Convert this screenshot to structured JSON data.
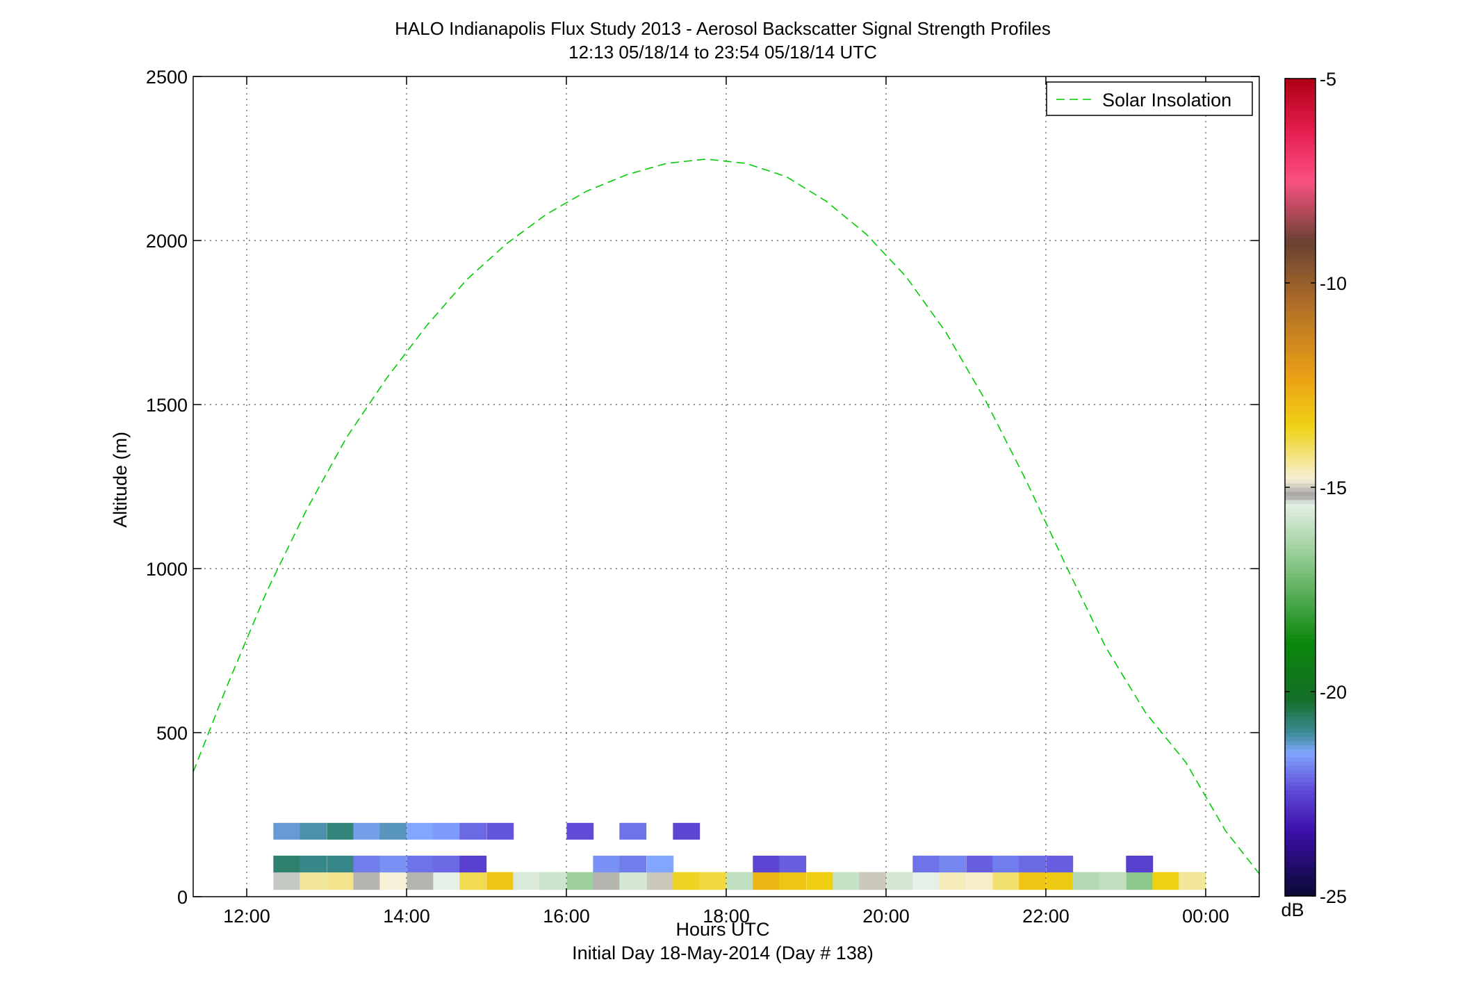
{
  "chart_data": {
    "type": "heatmap",
    "title": "HALO Indianapolis Flux Study 2013 - Aerosol Backscatter Signal Strength Profiles",
    "subtitle": "12:13 05/18/14 to 23:54 05/18/14  UTC",
    "xlabel": "Hours UTC",
    "xlabel2": "Initial Day 18-May-2014 (Day # 138)",
    "ylabel": "Altitude (m)",
    "xlim": [
      11.33,
      24.67
    ],
    "ylim": [
      0,
      2500
    ],
    "x_ticks": [
      12,
      14,
      16,
      18,
      20,
      22,
      24
    ],
    "x_tick_labels": [
      "12:00",
      "14:00",
      "16:00",
      "18:00",
      "20:00",
      "22:00",
      "00:00"
    ],
    "y_ticks": [
      0,
      500,
      1000,
      1500,
      2000,
      2500
    ],
    "y_tick_labels": [
      "0",
      "500",
      "1000",
      "1500",
      "2000",
      "2500"
    ],
    "grid": true,
    "colorbar": {
      "label": "dB",
      "range": [
        -25,
        -5
      ],
      "ticks": [
        -25,
        -20,
        -15,
        -10,
        -5
      ],
      "tick_labels": [
        "-25",
        "-20",
        "-15",
        "-10",
        "-5"
      ]
    },
    "series": [
      {
        "name": "Solar Insolation",
        "style": "dashed",
        "color": "#00cc00",
        "x": [
          11.33,
          11.75,
          12.25,
          12.75,
          13.25,
          13.75,
          14.25,
          14.75,
          15.25,
          15.75,
          16.25,
          16.75,
          17.25,
          17.75,
          18.25,
          18.75,
          19.25,
          19.75,
          20.25,
          20.75,
          21.25,
          21.75,
          22.25,
          22.75,
          23.25,
          23.75,
          24.25,
          24.67
        ],
        "values": [
          380,
          640,
          930,
          1180,
          1400,
          1580,
          1740,
          1880,
          1990,
          2080,
          2150,
          2200,
          2235,
          2248,
          2235,
          2195,
          2120,
          2020,
          1890,
          1720,
          1510,
          1270,
          1010,
          760,
          560,
          410,
          200,
          70
        ]
      }
    ],
    "legend": {
      "position": "top-right",
      "entries": [
        "Solar Insolation"
      ]
    },
    "cells": [
      {
        "x": 12.5,
        "y": 75,
        "v": "-20.7"
      },
      {
        "x": 12.83,
        "y": 75,
        "v": "-20.9"
      },
      {
        "x": 13.17,
        "y": 75,
        "v": "-20.9"
      },
      {
        "x": 13.5,
        "y": 75,
        "v": "-21.9"
      },
      {
        "x": 13.83,
        "y": 75,
        "v": "-21.7"
      },
      {
        "x": 14.17,
        "y": 75,
        "v": "-22.0"
      },
      {
        "x": 14.5,
        "y": 75,
        "v": "-22.1"
      },
      {
        "x": 14.83,
        "y": 75,
        "v": "-22.6"
      },
      {
        "x": 16.5,
        "y": 75,
        "v": "-21.7"
      },
      {
        "x": 16.83,
        "y": 75,
        "v": "-21.9"
      },
      {
        "x": 17.17,
        "y": 75,
        "v": "-21.5"
      },
      {
        "x": 18.5,
        "y": 75,
        "v": "-22.5"
      },
      {
        "x": 18.83,
        "y": 75,
        "v": "-22.2"
      },
      {
        "x": 20.5,
        "y": 75,
        "v": "-22.0"
      },
      {
        "x": 20.83,
        "y": 75,
        "v": "-21.8"
      },
      {
        "x": 21.17,
        "y": 75,
        "v": "-22.2"
      },
      {
        "x": 21.5,
        "y": 75,
        "v": "-21.9"
      },
      {
        "x": 21.83,
        "y": 75,
        "v": "-22.1"
      },
      {
        "x": 22.17,
        "y": 75,
        "v": "-22.2"
      },
      {
        "x": 23.17,
        "y": 75,
        "v": "-22.6"
      },
      {
        "x": 12.5,
        "y": 175,
        "v": "-21.3"
      },
      {
        "x": 12.83,
        "y": 175,
        "v": "-21.1"
      },
      {
        "x": 13.17,
        "y": 175,
        "v": "-20.8"
      },
      {
        "x": 13.5,
        "y": 175,
        "v": "-21.4"
      },
      {
        "x": 13.83,
        "y": 175,
        "v": "-21.2"
      },
      {
        "x": 14.17,
        "y": 175,
        "v": "-21.5"
      },
      {
        "x": 14.5,
        "y": 175,
        "v": "-21.6"
      },
      {
        "x": 14.83,
        "y": 175,
        "v": "-22.1"
      },
      {
        "x": 15.17,
        "y": 175,
        "v": "-22.3"
      },
      {
        "x": 16.17,
        "y": 175,
        "v": "-22.4"
      },
      {
        "x": 16.83,
        "y": 175,
        "v": "-22.0"
      },
      {
        "x": 17.5,
        "y": 175,
        "v": "-22.5"
      }
    ],
    "surface_band": [
      {
        "x": 12.5,
        "v": "-15.3"
      },
      {
        "x": 12.83,
        "v": "-14.4"
      },
      {
        "x": 13.17,
        "v": "-14.3"
      },
      {
        "x": 13.5,
        "v": "-15.1"
      },
      {
        "x": 13.83,
        "v": "-14.8"
      },
      {
        "x": 14.17,
        "v": "-15.1"
      },
      {
        "x": 14.5,
        "v": "-15.4"
      },
      {
        "x": 14.83,
        "v": "-13.9"
      },
      {
        "x": 15.17,
        "v": "-13.2"
      },
      {
        "x": 15.5,
        "v": "-15.6"
      },
      {
        "x": 15.83,
        "v": "-15.8"
      },
      {
        "x": 16.17,
        "v": "-16.5"
      },
      {
        "x": 16.5,
        "v": "-15.1"
      },
      {
        "x": 16.83,
        "v": "-15.7"
      },
      {
        "x": 17.17,
        "v": "-15.0"
      },
      {
        "x": 17.5,
        "v": "-13.6"
      },
      {
        "x": 17.83,
        "v": "-13.8"
      },
      {
        "x": 18.17,
        "v": "-16.0"
      },
      {
        "x": 18.5,
        "v": "-12.8"
      },
      {
        "x": 18.83,
        "v": "-13.2"
      },
      {
        "x": 19.17,
        "v": "-13.4"
      },
      {
        "x": 19.5,
        "v": "-15.9"
      },
      {
        "x": 19.83,
        "v": "-15.0"
      },
      {
        "x": 20.17,
        "v": "-15.7"
      },
      {
        "x": 20.5,
        "v": "-15.4"
      },
      {
        "x": 20.83,
        "v": "-14.6"
      },
      {
        "x": 21.17,
        "v": "-14.7"
      },
      {
        "x": 21.5,
        "v": "-14.1"
      },
      {
        "x": 21.83,
        "v": "-13.2"
      },
      {
        "x": 22.17,
        "v": "-13.3"
      },
      {
        "x": 22.5,
        "v": "-16.2"
      },
      {
        "x": 22.83,
        "v": "-16.0"
      },
      {
        "x": 23.17,
        "v": "-16.8"
      },
      {
        "x": 23.5,
        "v": "-13.5"
      },
      {
        "x": 23.83,
        "v": "-14.4"
      }
    ]
  }
}
